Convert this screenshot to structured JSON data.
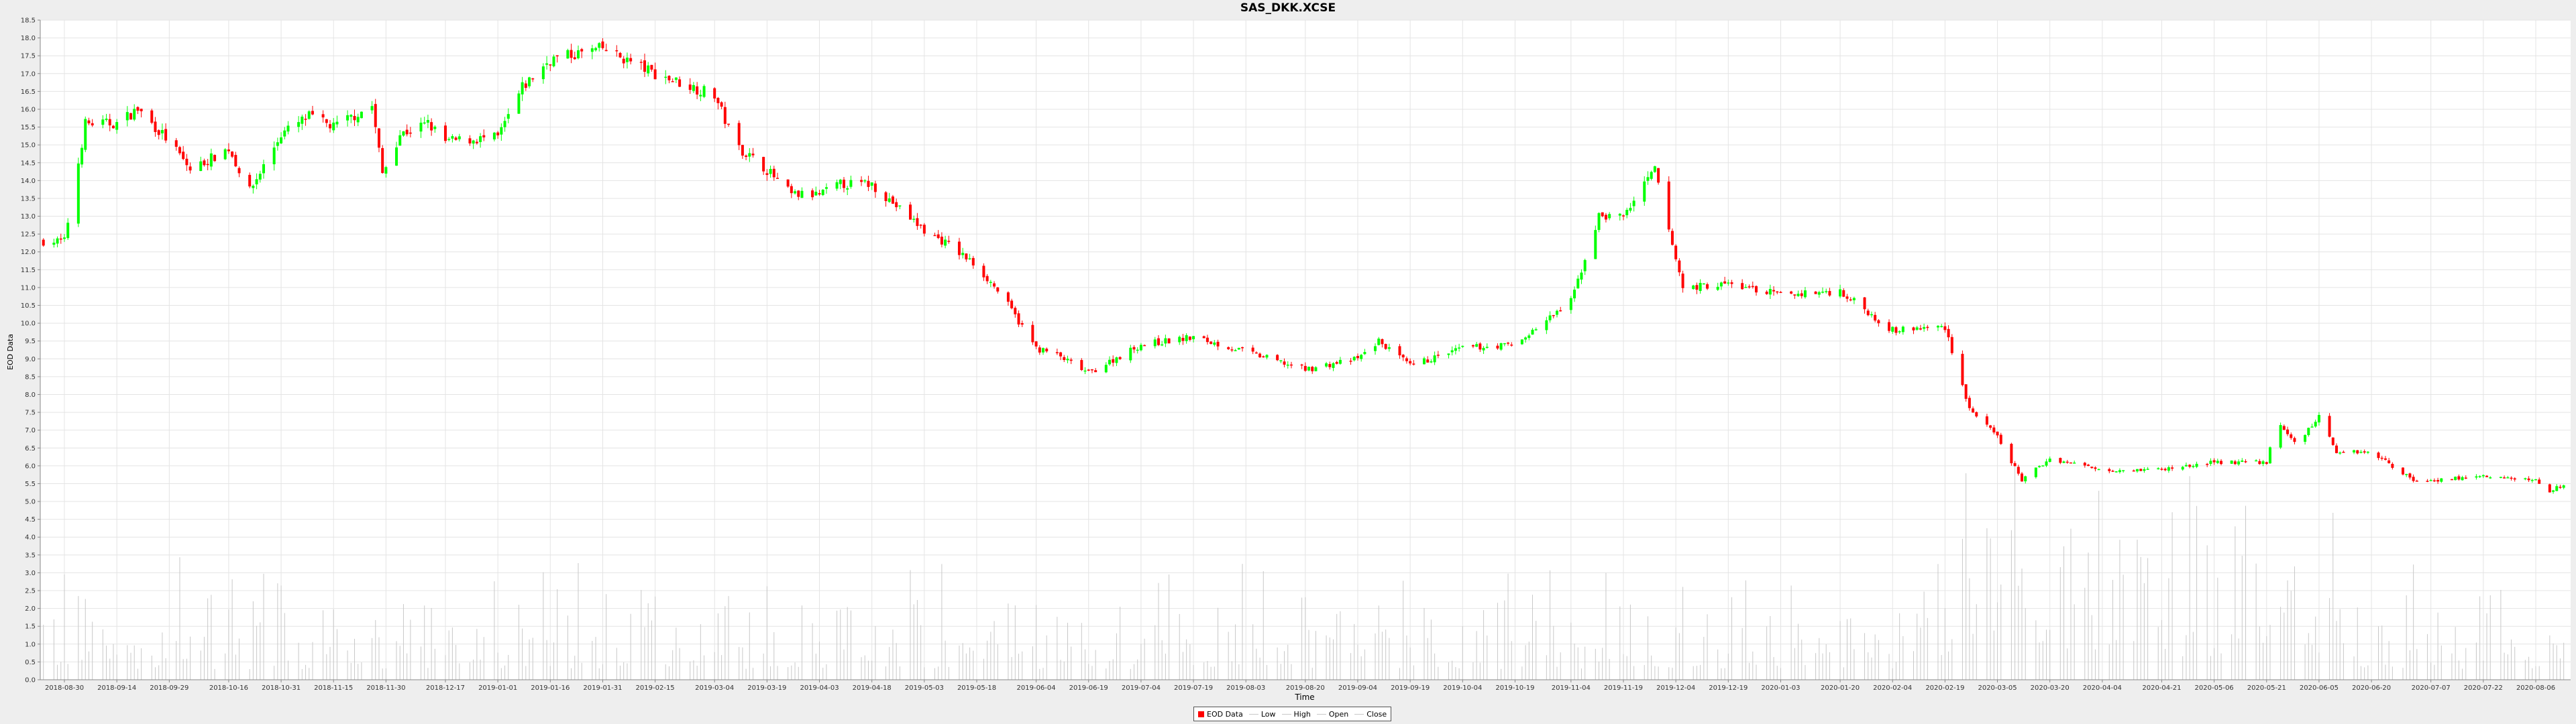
{
  "chart_data": {
    "type": "candlestick",
    "title": "SAS_DKK.XCSE",
    "xlabel": "Time",
    "ylabel": "EOD Data",
    "ylim": [
      0,
      18.5
    ],
    "y_ticks": [
      "0.0",
      "0.5",
      "1.0",
      "1.5",
      "2.0",
      "2.5",
      "3.0",
      "3.5",
      "4.0",
      "4.5",
      "5.0",
      "5.5",
      "6.0",
      "6.5",
      "7.0",
      "7.5",
      "8.0",
      "8.5",
      "9.0",
      "9.5",
      "10.0",
      "10.5",
      "11.0",
      "11.5",
      "12.0",
      "12.5",
      "13.0",
      "13.5",
      "14.0",
      "14.5",
      "15.0",
      "15.5",
      "16.0",
      "16.5",
      "17.0",
      "17.5",
      "18.0",
      "18.5"
    ],
    "x_ticks": [
      "2018-08-30",
      "2018-09-14",
      "2018-09-29",
      "2018-10-16",
      "2018-10-31",
      "2018-11-15",
      "2018-11-30",
      "2018-12-17",
      "2019-01-01",
      "2019-01-16",
      "2019-01-31",
      "2019-02-15",
      "2019-03-04",
      "2019-03-19",
      "2019-04-03",
      "2019-04-18",
      "2019-05-03",
      "2019-05-18",
      "2019-06-04",
      "2019-06-19",
      "2019-07-04",
      "2019-07-19",
      "2019-08-03",
      "2019-08-20",
      "2019-09-04",
      "2019-09-19",
      "2019-10-04",
      "2019-10-19",
      "2019-11-04",
      "2019-11-19",
      "2019-12-04",
      "2019-12-19",
      "2020-01-03",
      "2020-01-20",
      "2020-02-04",
      "2020-02-19",
      "2020-03-05",
      "2020-03-20",
      "2020-04-04",
      "2020-04-21",
      "2020-05-06",
      "2020-05-21",
      "2020-06-05",
      "2020-06-20",
      "2020-07-07",
      "2020-07-22",
      "2020-08-06"
    ],
    "close_anchors": [
      {
        "x": "2018-08-24",
        "y": 12.3
      },
      {
        "x": "2018-08-30",
        "y": 12.3
      },
      {
        "x": "2018-09-05",
        "y": 15.6
      },
      {
        "x": "2018-09-14",
        "y": 15.6
      },
      {
        "x": "2018-09-20",
        "y": 16.0
      },
      {
        "x": "2018-09-29",
        "y": 15.1
      },
      {
        "x": "2018-10-05",
        "y": 14.3
      },
      {
        "x": "2018-10-16",
        "y": 14.9
      },
      {
        "x": "2018-10-22",
        "y": 13.7
      },
      {
        "x": "2018-10-31",
        "y": 15.3
      },
      {
        "x": "2018-11-08",
        "y": 15.8
      },
      {
        "x": "2018-11-15",
        "y": 15.5
      },
      {
        "x": "2018-11-26",
        "y": 16.1
      },
      {
        "x": "2018-11-29",
        "y": 14.2
      },
      {
        "x": "2018-12-04",
        "y": 15.3
      },
      {
        "x": "2018-12-12",
        "y": 15.6
      },
      {
        "x": "2018-12-17",
        "y": 15.1
      },
      {
        "x": "2019-01-01",
        "y": 15.2
      },
      {
        "x": "2019-01-08",
        "y": 16.6
      },
      {
        "x": "2019-01-16",
        "y": 17.4
      },
      {
        "x": "2019-01-31",
        "y": 17.7
      },
      {
        "x": "2019-02-15",
        "y": 17.0
      },
      {
        "x": "2019-03-04",
        "y": 16.4
      },
      {
        "x": "2019-03-10",
        "y": 15.0
      },
      {
        "x": "2019-03-19",
        "y": 14.3
      },
      {
        "x": "2019-03-26",
        "y": 13.6
      },
      {
        "x": "2019-04-03",
        "y": 13.6
      },
      {
        "x": "2019-04-09",
        "y": 13.9
      },
      {
        "x": "2019-04-18",
        "y": 13.9
      },
      {
        "x": "2019-04-26",
        "y": 13.2
      },
      {
        "x": "2019-05-03",
        "y": 12.6
      },
      {
        "x": "2019-05-10",
        "y": 12.2
      },
      {
        "x": "2019-05-18",
        "y": 11.6
      },
      {
        "x": "2019-05-25",
        "y": 10.8
      },
      {
        "x": "2019-06-04",
        "y": 9.3
      },
      {
        "x": "2019-06-10",
        "y": 9.1
      },
      {
        "x": "2019-06-19",
        "y": 8.6
      },
      {
        "x": "2019-07-04",
        "y": 9.4
      },
      {
        "x": "2019-07-19",
        "y": 9.6
      },
      {
        "x": "2019-08-03",
        "y": 9.2
      },
      {
        "x": "2019-08-20",
        "y": 8.7
      },
      {
        "x": "2019-09-04",
        "y": 9.0
      },
      {
        "x": "2019-09-10",
        "y": 9.5
      },
      {
        "x": "2019-09-19",
        "y": 8.8
      },
      {
        "x": "2019-10-04",
        "y": 9.3
      },
      {
        "x": "2019-10-19",
        "y": 9.4
      },
      {
        "x": "2019-11-04",
        "y": 10.6
      },
      {
        "x": "2019-11-12",
        "y": 13.0
      },
      {
        "x": "2019-11-19",
        "y": 13.0
      },
      {
        "x": "2019-11-28",
        "y": 14.3
      },
      {
        "x": "2019-12-02",
        "y": 12.6
      },
      {
        "x": "2019-12-06",
        "y": 11.0
      },
      {
        "x": "2019-12-19",
        "y": 11.1
      },
      {
        "x": "2020-01-03",
        "y": 10.8
      },
      {
        "x": "2020-01-20",
        "y": 10.9
      },
      {
        "x": "2020-02-04",
        "y": 9.8
      },
      {
        "x": "2020-02-19",
        "y": 9.9
      },
      {
        "x": "2020-02-26",
        "y": 7.6
      },
      {
        "x": "2020-03-05",
        "y": 6.8
      },
      {
        "x": "2020-03-12",
        "y": 5.6
      },
      {
        "x": "2020-03-20",
        "y": 6.2
      },
      {
        "x": "2020-04-04",
        "y": 5.9
      },
      {
        "x": "2020-04-21",
        "y": 5.9
      },
      {
        "x": "2020-05-06",
        "y": 6.1
      },
      {
        "x": "2020-05-21",
        "y": 6.1
      },
      {
        "x": "2020-05-24",
        "y": 7.2
      },
      {
        "x": "2020-05-30",
        "y": 6.6
      },
      {
        "x": "2020-06-05",
        "y": 7.4
      },
      {
        "x": "2020-06-10",
        "y": 6.4
      },
      {
        "x": "2020-06-20",
        "y": 6.4
      },
      {
        "x": "2020-07-02",
        "y": 5.6
      },
      {
        "x": "2020-07-07",
        "y": 5.6
      },
      {
        "x": "2020-07-22",
        "y": 5.7
      },
      {
        "x": "2020-08-06",
        "y": 5.6
      },
      {
        "x": "2020-08-10",
        "y": 5.3
      },
      {
        "x": "2020-08-14",
        "y": 5.5
      }
    ],
    "series": [
      {
        "name": "EOD Data",
        "color": "#ff0000"
      },
      {
        "name": "Low",
        "color": "#c8c8c8"
      },
      {
        "name": "High",
        "color": "#c8c8c8"
      },
      {
        "name": "Open",
        "color": "#c8c8c8"
      },
      {
        "name": "Close",
        "color": "#c8c8c8"
      }
    ],
    "up_color": "#00ff00",
    "down_color": "#ff0000",
    "volume_color": "#c8c8c8",
    "grid": true,
    "legend_position": "bottom-center"
  }
}
